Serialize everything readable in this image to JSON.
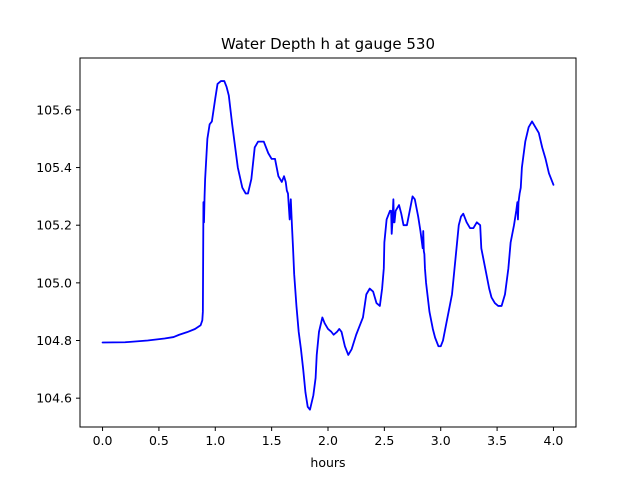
{
  "chart_data": {
    "type": "line",
    "title": "Water Depth h at gauge 530",
    "xlabel": "hours",
    "ylabel": "",
    "xlim": [
      -0.2,
      4.2
    ],
    "ylim": [
      104.5,
      105.78
    ],
    "grid": false,
    "legend": "none",
    "xticks": [
      0.0,
      0.5,
      1.0,
      1.5,
      2.0,
      2.5,
      3.0,
      3.5,
      4.0
    ],
    "xtick_labels": [
      "0.0",
      "0.5",
      "1.0",
      "1.5",
      "2.0",
      "2.5",
      "3.0",
      "3.5",
      "4.0"
    ],
    "yticks": [
      104.6,
      104.8,
      105.0,
      105.2,
      105.4,
      105.6
    ],
    "ytick_labels": [
      "104.6",
      "104.8",
      "105.0",
      "105.2",
      "105.4",
      "105.6"
    ],
    "series": [
      {
        "color": "#0000ff",
        "x": [
          0.0,
          0.2,
          0.4,
          0.55,
          0.63,
          0.68,
          0.75,
          0.82,
          0.87,
          0.885,
          0.89,
          0.895,
          0.9,
          0.905,
          0.91,
          0.93,
          0.95,
          0.97,
          1.0,
          1.02,
          1.05,
          1.08,
          1.1,
          1.12,
          1.15,
          1.2,
          1.24,
          1.27,
          1.29,
          1.32,
          1.35,
          1.38,
          1.4,
          1.43,
          1.47,
          1.5,
          1.53,
          1.56,
          1.59,
          1.61,
          1.625,
          1.635,
          1.645,
          1.66,
          1.67,
          1.68,
          1.69,
          1.7,
          1.72,
          1.74,
          1.76,
          1.78,
          1.8,
          1.82,
          1.84,
          1.87,
          1.89,
          1.9,
          1.92,
          1.95,
          1.97,
          2.0,
          2.03,
          2.05,
          2.08,
          2.1,
          2.12,
          2.15,
          2.18,
          2.21,
          2.25,
          2.28,
          2.31,
          2.34,
          2.37,
          2.4,
          2.43,
          2.46,
          2.48,
          2.495,
          2.5,
          2.52,
          2.55,
          2.56,
          2.565,
          2.57,
          2.58,
          2.585,
          2.59,
          2.6,
          2.63,
          2.65,
          2.67,
          2.7,
          2.73,
          2.75,
          2.77,
          2.8,
          2.82,
          2.84,
          2.845,
          2.85,
          2.855,
          2.86,
          2.87,
          2.9,
          2.93,
          2.95,
          2.98,
          3.0,
          3.02,
          3.05,
          3.08,
          3.1,
          3.12,
          3.14,
          3.16,
          3.18,
          3.2,
          3.23,
          3.26,
          3.29,
          3.32,
          3.35,
          3.36,
          3.37,
          3.4,
          3.43,
          3.45,
          3.48,
          3.51,
          3.54,
          3.57,
          3.6,
          3.62,
          3.65,
          3.67,
          3.68,
          3.685,
          3.69,
          3.7,
          3.71,
          3.72,
          3.75,
          3.78,
          3.81,
          3.84,
          3.87,
          3.9,
          3.93,
          3.96,
          4.0
        ],
        "y": [
          104.793,
          104.794,
          104.8,
          104.807,
          104.812,
          104.82,
          104.829,
          104.84,
          104.853,
          104.87,
          104.9,
          105.28,
          105.21,
          105.3,
          105.36,
          105.5,
          105.55,
          105.56,
          105.64,
          105.69,
          105.7,
          105.7,
          105.68,
          105.65,
          105.55,
          105.4,
          105.33,
          105.31,
          105.31,
          105.36,
          105.47,
          105.49,
          105.49,
          105.49,
          105.45,
          105.43,
          105.43,
          105.37,
          105.35,
          105.37,
          105.35,
          105.32,
          105.31,
          105.22,
          105.29,
          105.2,
          105.12,
          105.03,
          104.92,
          104.83,
          104.77,
          104.7,
          104.62,
          104.57,
          104.56,
          104.61,
          104.67,
          104.75,
          104.83,
          104.88,
          104.86,
          104.84,
          104.83,
          104.82,
          104.83,
          104.84,
          104.83,
          104.78,
          104.75,
          104.77,
          104.82,
          104.85,
          104.88,
          104.96,
          104.98,
          104.97,
          104.93,
          104.92,
          104.98,
          105.05,
          105.14,
          105.22,
          105.25,
          105.25,
          105.17,
          105.2,
          105.29,
          105.21,
          105.21,
          105.25,
          105.27,
          105.24,
          105.2,
          105.2,
          105.26,
          105.3,
          105.29,
          105.23,
          105.18,
          105.12,
          105.18,
          105.11,
          105.1,
          105.05,
          105.0,
          104.9,
          104.84,
          104.81,
          104.78,
          104.78,
          104.8,
          104.86,
          104.92,
          104.96,
          105.04,
          105.12,
          105.2,
          105.23,
          105.24,
          105.21,
          105.19,
          105.19,
          105.21,
          105.2,
          105.12,
          105.1,
          105.04,
          104.98,
          104.95,
          104.93,
          104.92,
          104.92,
          104.96,
          105.05,
          105.14,
          105.2,
          105.25,
          105.28,
          105.22,
          105.28,
          105.31,
          105.33,
          105.4,
          105.49,
          105.54,
          105.56,
          105.54,
          105.52,
          105.47,
          105.43,
          105.38,
          105.34
        ]
      }
    ]
  }
}
